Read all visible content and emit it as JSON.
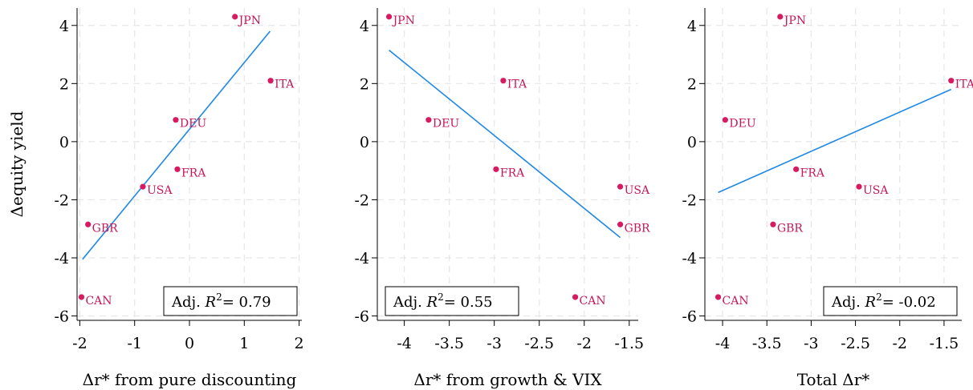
{
  "chart_data": [
    {
      "type": "scatter",
      "xlabel": "Δr* from pure discounting",
      "ylabel": "Δequity yield",
      "xlim": [
        -2.05,
        2.05
      ],
      "ylim": [
        -6.15,
        4.6
      ],
      "xticks": [
        "-2",
        "-1",
        "0",
        "1",
        "2"
      ],
      "yticks": [
        "-6",
        "-4",
        "-2",
        "0",
        "2",
        "4"
      ],
      "grid": true,
      "points": [
        {
          "label": "JPN",
          "x": 0.83,
          "y": 4.3
        },
        {
          "label": "ITA",
          "x": 1.48,
          "y": 2.1
        },
        {
          "label": "DEU",
          "x": -0.25,
          "y": 0.75
        },
        {
          "label": "FRA",
          "x": -0.22,
          "y": -0.95
        },
        {
          "label": "USA",
          "x": -0.85,
          "y": -1.55
        },
        {
          "label": "GBR",
          "x": -1.85,
          "y": -2.85
        },
        {
          "label": "CAN",
          "x": -1.97,
          "y": -5.35
        }
      ],
      "fit": {
        "x": [
          -1.95,
          1.47
        ],
        "y": [
          -4.05,
          3.8
        ]
      },
      "annotation": {
        "prefix": "Adj. ",
        "var": "R",
        "sup": "2",
        "suffix": "= 0.79",
        "position": "bottom-right"
      }
    },
    {
      "type": "scatter",
      "xlabel": "Δr* from growth & VIX",
      "ylabel": "",
      "xlim": [
        -4.3,
        -1.4
      ],
      "ylim": [
        -6.15,
        4.6
      ],
      "xticks": [
        "-4",
        "-3.5",
        "-3",
        "-2.5",
        "-2",
        "-1.5"
      ],
      "yticks": [
        "-6",
        "-4",
        "-2",
        "0",
        "2",
        "4"
      ],
      "grid": true,
      "points": [
        {
          "label": "JPN",
          "x": -4.17,
          "y": 4.3
        },
        {
          "label": "ITA",
          "x": -2.9,
          "y": 2.1
        },
        {
          "label": "DEU",
          "x": -3.73,
          "y": 0.75
        },
        {
          "label": "FRA",
          "x": -2.98,
          "y": -0.95
        },
        {
          "label": "USA",
          "x": -1.6,
          "y": -1.55
        },
        {
          "label": "GBR",
          "x": -1.6,
          "y": -2.85
        },
        {
          "label": "CAN",
          "x": -2.1,
          "y": -5.35
        }
      ],
      "fit": {
        "x": [
          -4.17,
          -1.6
        ],
        "y": [
          3.15,
          -3.3
        ]
      },
      "annotation": {
        "prefix": "Adj. ",
        "var": "R",
        "sup": "2",
        "suffix": "= 0.55",
        "position": "bottom-left"
      }
    },
    {
      "type": "scatter",
      "xlabel": "Total Δr*",
      "ylabel": "",
      "xlim": [
        -4.2,
        -1.3
      ],
      "ylim": [
        -6.15,
        4.6
      ],
      "xticks": [
        "-4",
        "-3.5",
        "-3",
        "-2.5",
        "-2",
        "-1.5"
      ],
      "yticks": [
        "-6",
        "-4",
        "-2",
        "0",
        "2",
        "4"
      ],
      "grid": true,
      "points": [
        {
          "label": "JPN",
          "x": -3.35,
          "y": 4.3
        },
        {
          "label": "ITA",
          "x": -1.42,
          "y": 2.1
        },
        {
          "label": "DEU",
          "x": -3.97,
          "y": 0.75
        },
        {
          "label": "FRA",
          "x": -3.17,
          "y": -0.95
        },
        {
          "label": "USA",
          "x": -2.46,
          "y": -1.55
        },
        {
          "label": "GBR",
          "x": -3.43,
          "y": -2.85
        },
        {
          "label": "CAN",
          "x": -4.05,
          "y": -5.35
        }
      ],
      "fit": {
        "x": [
          -4.05,
          -1.42
        ],
        "y": [
          -1.75,
          1.8
        ]
      },
      "annotation": {
        "prefix": "Adj. ",
        "var": "R",
        "sup": "2",
        "suffix": "= -0.02",
        "position": "bottom-right"
      }
    }
  ]
}
